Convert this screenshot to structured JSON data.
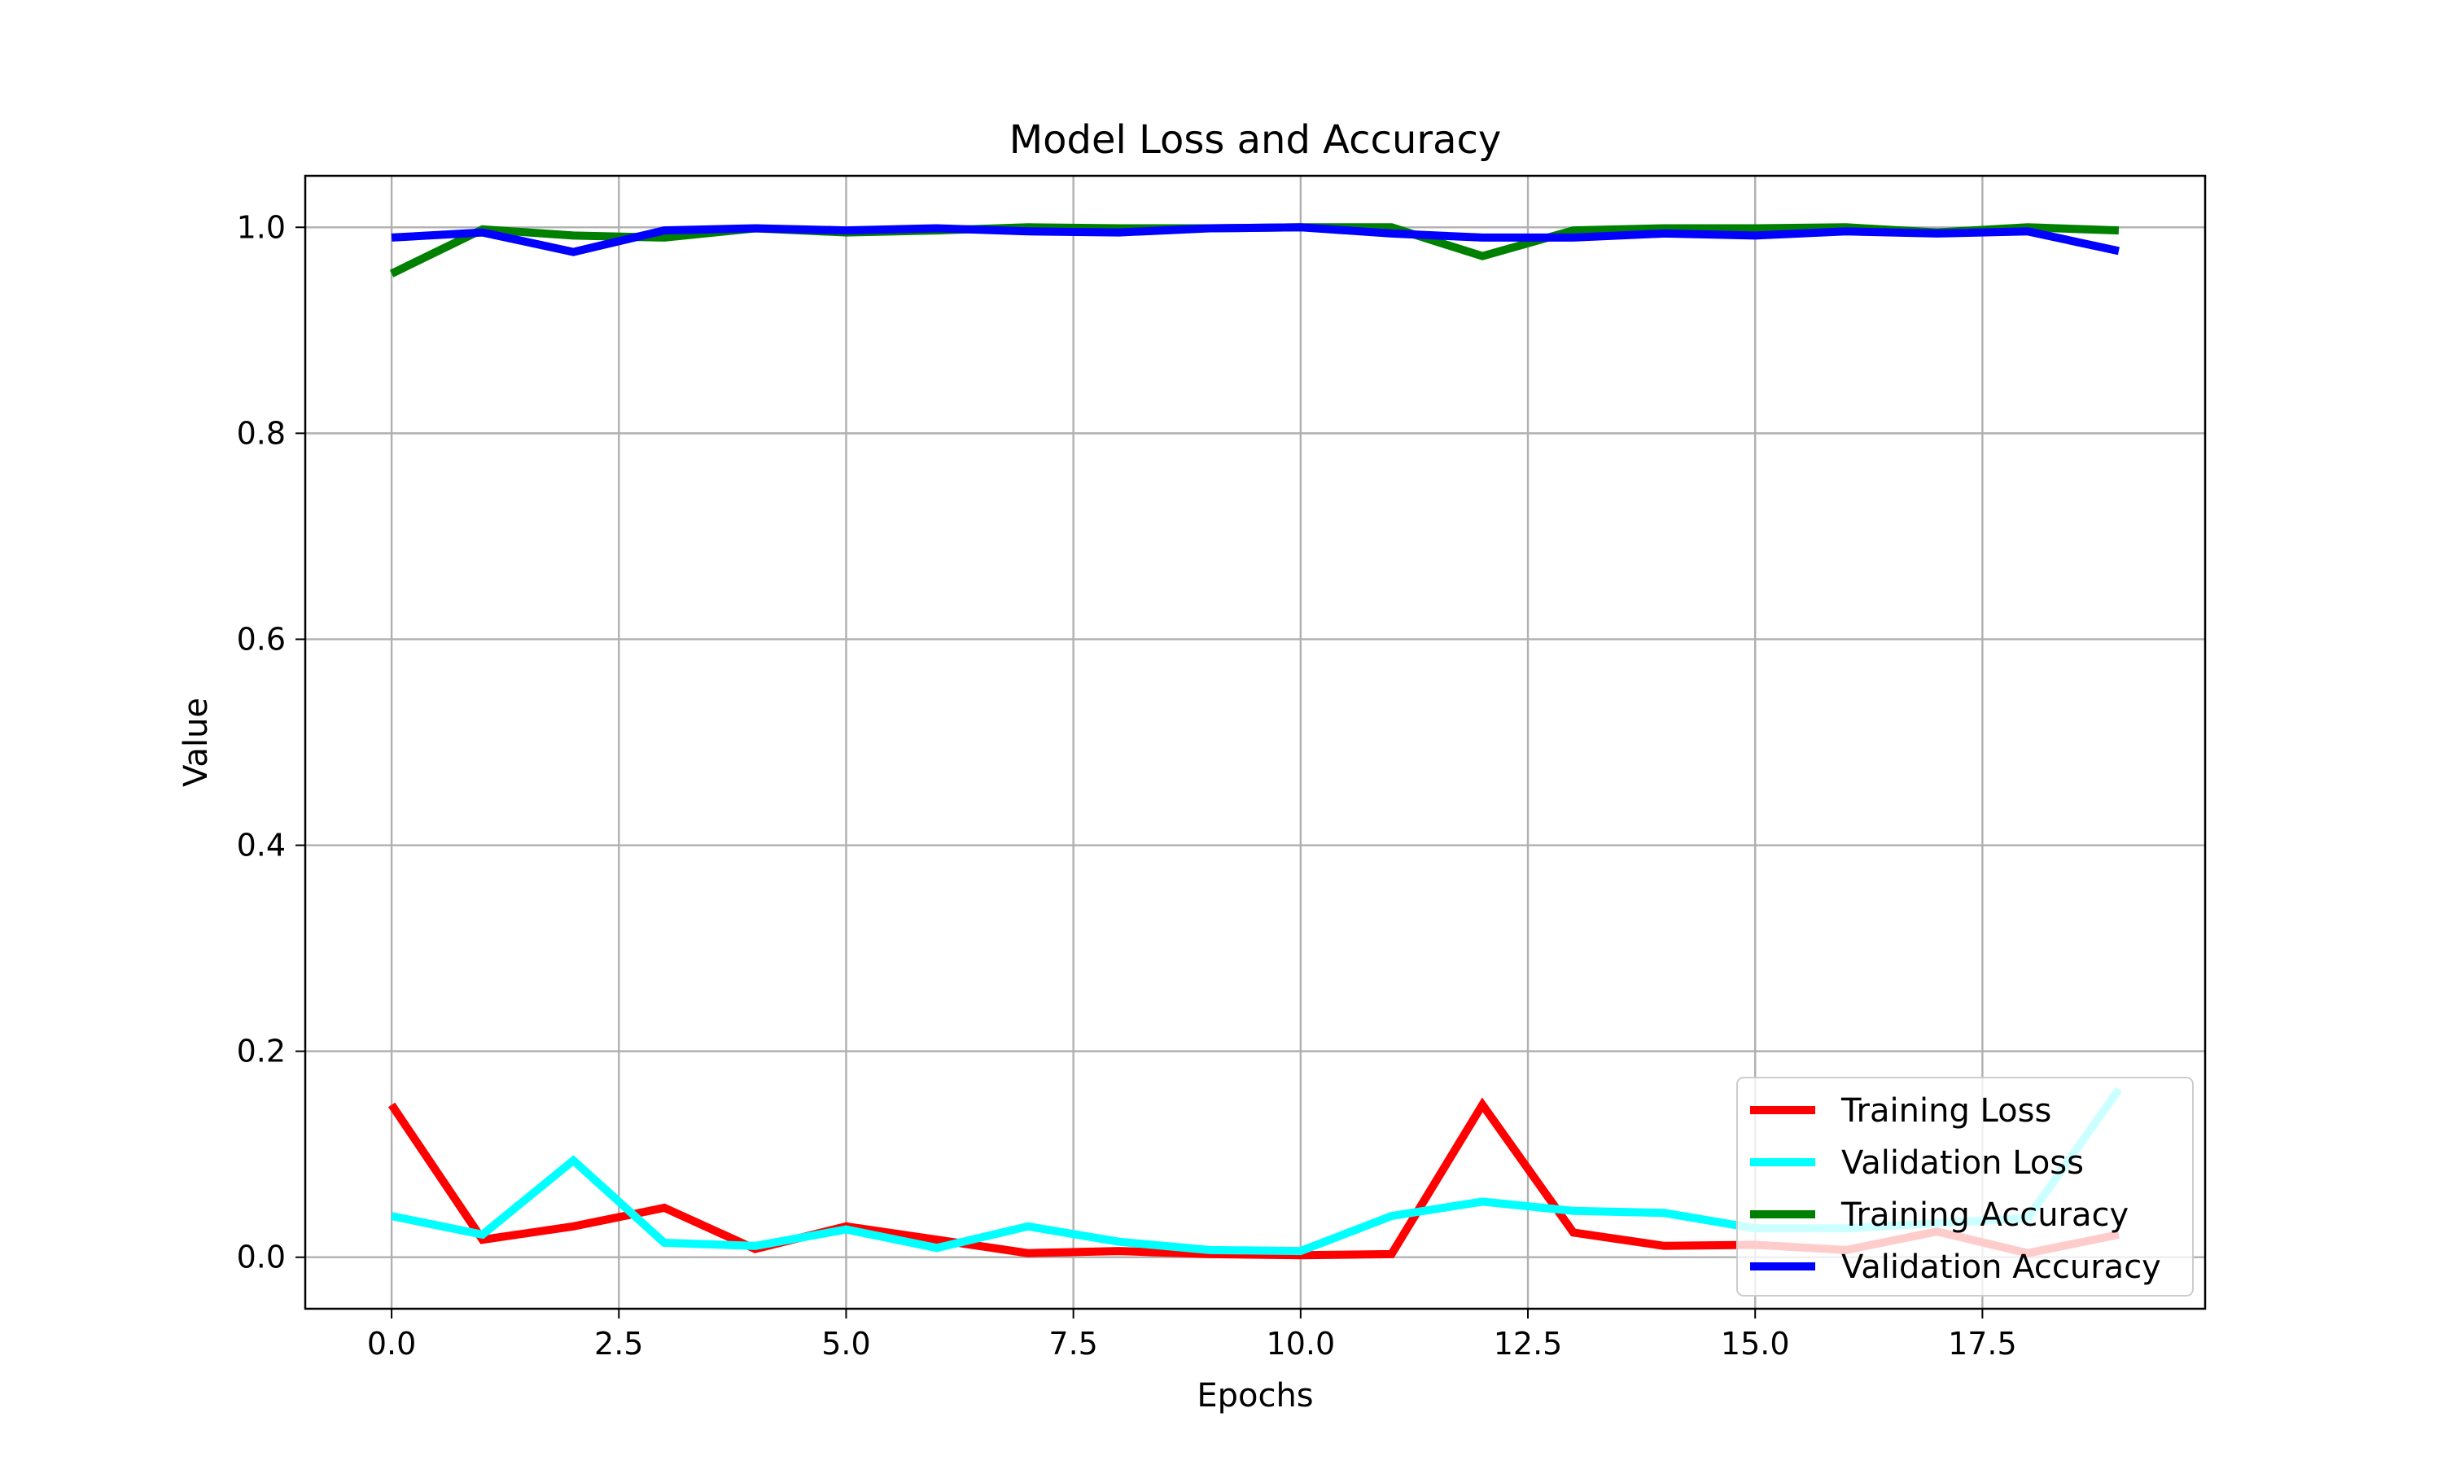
{
  "chart_data": {
    "type": "line",
    "title": "Model Loss and Accuracy",
    "xlabel": "Epochs",
    "ylabel": "Value",
    "xlim": [
      -0.95,
      19.95
    ],
    "ylim": [
      -0.05,
      1.05
    ],
    "xticks": [
      0.0,
      2.5,
      5.0,
      7.5,
      10.0,
      12.5,
      15.0,
      17.5
    ],
    "xtick_labels": [
      "0.0",
      "2.5",
      "5.0",
      "7.5",
      "10.0",
      "12.5",
      "15.0",
      "17.5"
    ],
    "yticks": [
      0.0,
      0.2,
      0.4,
      0.6,
      0.8,
      1.0
    ],
    "ytick_labels": [
      "0.0",
      "0.2",
      "0.4",
      "0.6",
      "0.8",
      "1.0"
    ],
    "grid": true,
    "legend_position": "lower-right",
    "x": [
      0,
      1,
      2,
      3,
      4,
      5,
      6,
      7,
      8,
      9,
      10,
      11,
      12,
      13,
      14,
      15,
      16,
      17,
      18,
      19
    ],
    "series": [
      {
        "name": "Training Loss",
        "color": "#ff0000",
        "values": [
          0.148,
          0.017,
          0.03,
          0.048,
          0.008,
          0.03,
          0.017,
          0.004,
          0.006,
          0.003,
          0.002,
          0.003,
          0.148,
          0.024,
          0.011,
          0.012,
          0.007,
          0.025,
          0.004,
          0.022
        ]
      },
      {
        "name": "Validation Loss",
        "color": "#00ffff",
        "values": [
          0.04,
          0.022,
          0.094,
          0.014,
          0.011,
          0.027,
          0.009,
          0.03,
          0.015,
          0.007,
          0.006,
          0.04,
          0.054,
          0.045,
          0.043,
          0.028,
          0.028,
          0.033,
          0.038,
          0.163
        ]
      },
      {
        "name": "Training Accuracy",
        "color": "#008000",
        "values": [
          0.955,
          0.998,
          0.992,
          0.99,
          0.999,
          0.995,
          0.997,
          1.0,
          0.999,
          0.999,
          1.0,
          1.0,
          0.972,
          0.997,
          0.999,
          0.999,
          1.0,
          0.995,
          1.0,
          0.997
        ]
      },
      {
        "name": "Validation Accuracy",
        "color": "#0000ff",
        "values": [
          0.99,
          0.995,
          0.976,
          0.997,
          0.999,
          0.997,
          0.999,
          0.996,
          0.995,
          0.999,
          1.0,
          0.994,
          0.99,
          0.99,
          0.994,
          0.992,
          0.996,
          0.994,
          0.996,
          0.977
        ]
      }
    ]
  }
}
